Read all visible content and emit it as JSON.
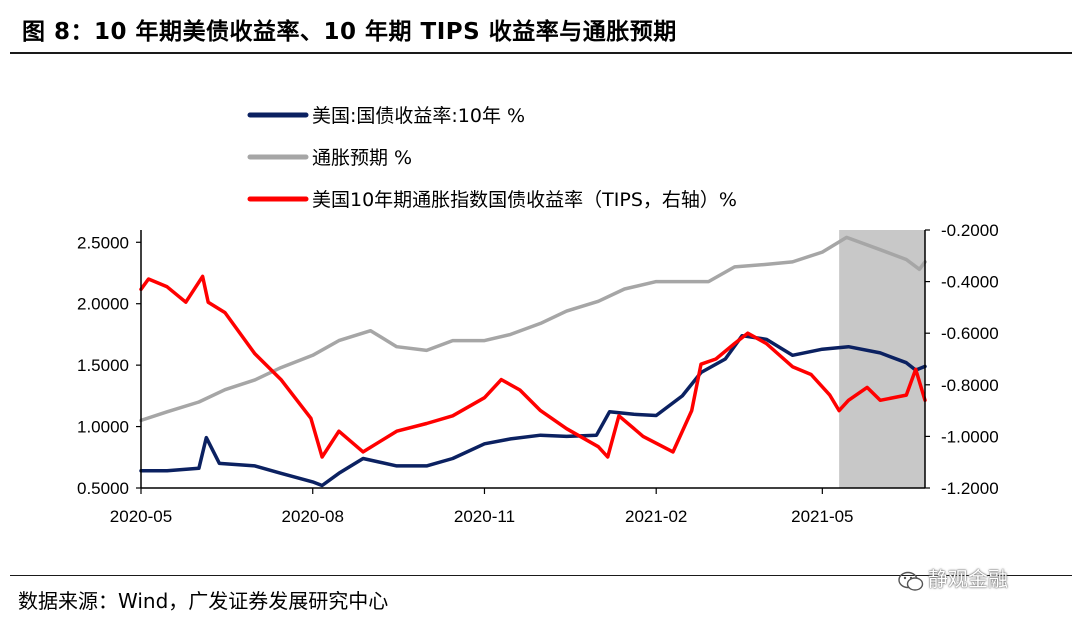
{
  "figure": {
    "title": "图 8：10 年期美债收益率、10 年期 TIPS 收益率与通胀预期",
    "source": "数据来源：Wind，广发证券发展研究中心",
    "watermark": "静观金融",
    "watermark_icon": "wechat-icon"
  },
  "chart_data": {
    "type": "line",
    "title": "",
    "xlabel": "",
    "ylabel_left": "",
    "ylabel_right": "",
    "x_ticks": [
      "2020-05",
      "2020-08",
      "2020-11",
      "2021-02",
      "2021-05"
    ],
    "y_left_ticks": [
      "2.5000",
      "2.0000",
      "1.5000",
      "1.0000",
      "0.5000"
    ],
    "y_right_ticks": [
      "-0.2000",
      "-0.4000",
      "-0.6000",
      "-0.8000",
      "-1.0000",
      "-1.2000"
    ],
    "ylim_left": [
      0.5,
      2.6
    ],
    "ylim_right": [
      -1.2,
      -0.2
    ],
    "x_range": [
      "2020-05-01",
      "2021-06-25"
    ],
    "grid": false,
    "legend_position": "top-center",
    "shaded_period": {
      "start": "2021-05-10",
      "end": "2021-06-25",
      "color": "#c8c8c8"
    },
    "series": [
      {
        "name": "美国:国债收益率:10年 %",
        "axis": "left",
        "color": "#0b2161",
        "points": [
          [
            "2020-05-01",
            0.64
          ],
          [
            "2020-05-15",
            0.64
          ],
          [
            "2020-06-01",
            0.66
          ],
          [
            "2020-06-05",
            0.91
          ],
          [
            "2020-06-12",
            0.7
          ],
          [
            "2020-07-01",
            0.68
          ],
          [
            "2020-07-15",
            0.62
          ],
          [
            "2020-08-01",
            0.55
          ],
          [
            "2020-08-06",
            0.52
          ],
          [
            "2020-08-15",
            0.62
          ],
          [
            "2020-08-28",
            0.74
          ],
          [
            "2020-09-15",
            0.68
          ],
          [
            "2020-10-01",
            0.68
          ],
          [
            "2020-10-15",
            0.74
          ],
          [
            "2020-11-01",
            0.86
          ],
          [
            "2020-11-15",
            0.9
          ],
          [
            "2020-12-01",
            0.93
          ],
          [
            "2020-12-15",
            0.92
          ],
          [
            "2020-12-31",
            0.93
          ],
          [
            "2021-01-07",
            1.12
          ],
          [
            "2021-01-20",
            1.1
          ],
          [
            "2021-02-01",
            1.09
          ],
          [
            "2021-02-15",
            1.25
          ],
          [
            "2021-02-25",
            1.44
          ],
          [
            "2021-03-10",
            1.55
          ],
          [
            "2021-03-19",
            1.74
          ],
          [
            "2021-04-01",
            1.71
          ],
          [
            "2021-04-15",
            1.58
          ],
          [
            "2021-05-01",
            1.63
          ],
          [
            "2021-05-15",
            1.65
          ],
          [
            "2021-06-01",
            1.6
          ],
          [
            "2021-06-15",
            1.52
          ],
          [
            "2021-06-20",
            1.46
          ],
          [
            "2021-06-25",
            1.49
          ]
        ]
      },
      {
        "name": "通胀预期 %",
        "axis": "left",
        "color": "#a6a6a6",
        "points": [
          [
            "2020-05-01",
            1.05
          ],
          [
            "2020-05-15",
            1.12
          ],
          [
            "2020-06-01",
            1.2
          ],
          [
            "2020-06-15",
            1.3
          ],
          [
            "2020-07-01",
            1.38
          ],
          [
            "2020-07-15",
            1.48
          ],
          [
            "2020-08-01",
            1.58
          ],
          [
            "2020-08-15",
            1.7
          ],
          [
            "2020-09-01",
            1.78
          ],
          [
            "2020-09-15",
            1.65
          ],
          [
            "2020-10-01",
            1.62
          ],
          [
            "2020-10-15",
            1.7
          ],
          [
            "2020-11-01",
            1.7
          ],
          [
            "2020-11-15",
            1.75
          ],
          [
            "2020-12-01",
            1.84
          ],
          [
            "2020-12-15",
            1.94
          ],
          [
            "2021-01-01",
            2.02
          ],
          [
            "2021-01-15",
            2.12
          ],
          [
            "2021-02-01",
            2.18
          ],
          [
            "2021-02-15",
            2.18
          ],
          [
            "2021-03-01",
            2.18
          ],
          [
            "2021-03-15",
            2.3
          ],
          [
            "2021-04-01",
            2.32
          ],
          [
            "2021-04-15",
            2.34
          ],
          [
            "2021-05-01",
            2.42
          ],
          [
            "2021-05-14",
            2.54
          ],
          [
            "2021-06-01",
            2.44
          ],
          [
            "2021-06-15",
            2.36
          ],
          [
            "2021-06-22",
            2.28
          ],
          [
            "2021-06-25",
            2.34
          ]
        ]
      },
      {
        "name": "美国10年期通胀指数国债收益率（TIPS，右轴）%",
        "axis": "right",
        "color": "#ff0000",
        "points": [
          [
            "2020-05-01",
            -0.43
          ],
          [
            "2020-05-05",
            -0.39
          ],
          [
            "2020-05-15",
            -0.42
          ],
          [
            "2020-05-25",
            -0.48
          ],
          [
            "2020-06-03",
            -0.38
          ],
          [
            "2020-06-06",
            -0.48
          ],
          [
            "2020-06-15",
            -0.52
          ],
          [
            "2020-07-01",
            -0.68
          ],
          [
            "2020-07-15",
            -0.78
          ],
          [
            "2020-07-31",
            -0.93
          ],
          [
            "2020-08-06",
            -1.08
          ],
          [
            "2020-08-15",
            -0.98
          ],
          [
            "2020-08-28",
            -1.06
          ],
          [
            "2020-09-15",
            -0.98
          ],
          [
            "2020-10-01",
            -0.95
          ],
          [
            "2020-10-15",
            -0.92
          ],
          [
            "2020-11-01",
            -0.85
          ],
          [
            "2020-11-10",
            -0.78
          ],
          [
            "2020-11-20",
            -0.82
          ],
          [
            "2020-12-01",
            -0.9
          ],
          [
            "2020-12-15",
            -0.97
          ],
          [
            "2021-01-01",
            -1.04
          ],
          [
            "2021-01-06",
            -1.08
          ],
          [
            "2021-01-12",
            -0.92
          ],
          [
            "2021-01-25",
            -1.0
          ],
          [
            "2021-02-10",
            -1.06
          ],
          [
            "2021-02-20",
            -0.9
          ],
          [
            "2021-02-25",
            -0.72
          ],
          [
            "2021-03-05",
            -0.7
          ],
          [
            "2021-03-15",
            -0.64
          ],
          [
            "2021-03-22",
            -0.6
          ],
          [
            "2021-04-01",
            -0.64
          ],
          [
            "2021-04-15",
            -0.73
          ],
          [
            "2021-04-25",
            -0.76
          ],
          [
            "2021-05-05",
            -0.84
          ],
          [
            "2021-05-10",
            -0.9
          ],
          [
            "2021-05-15",
            -0.86
          ],
          [
            "2021-05-25",
            -0.81
          ],
          [
            "2021-06-01",
            -0.86
          ],
          [
            "2021-06-15",
            -0.84
          ],
          [
            "2021-06-20",
            -0.74
          ],
          [
            "2021-06-25",
            -0.86
          ]
        ]
      }
    ]
  }
}
